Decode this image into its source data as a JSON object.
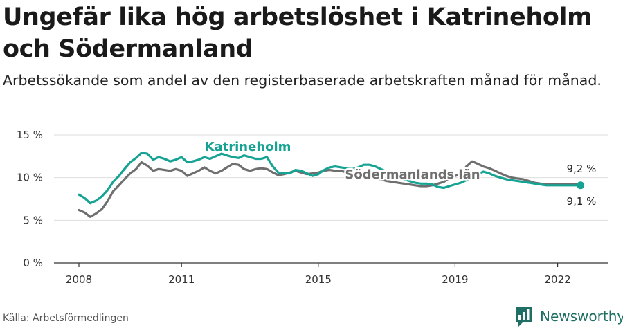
{
  "header": {
    "title": "Ungefär lika hög arbetslöshet i Katrineholm och Södermanland",
    "subtitle": "Arbetssökande som andel av den registerbaserade arbetskraften månad för månad."
  },
  "footer": {
    "source": "Källa: Arbetsförmedlingen",
    "brand": "Newsworthy"
  },
  "colors": {
    "katrineholm": "#16a394",
    "sodermanland": "#6f6f6f",
    "brand": "#1f6f64"
  },
  "chart_data": {
    "type": "line",
    "title": "Ungefär lika hög arbetslöshet i Katrineholm och Södermanland",
    "xlabel": "",
    "ylabel": "",
    "xlim": [
      2008,
      2023.5
    ],
    "ylim": [
      0,
      15
    ],
    "xticks": [
      {
        "value": 2008,
        "label": "2008"
      },
      {
        "value": 2011,
        "label": "2011"
      },
      {
        "value": 2015,
        "label": "2015"
      },
      {
        "value": 2019,
        "label": "2019"
      },
      {
        "value": 2022,
        "label": "2022"
      }
    ],
    "yticks": [
      {
        "value": 0,
        "label": "0 %"
      },
      {
        "value": 5,
        "label": "5 %"
      },
      {
        "value": 10,
        "label": "10 %"
      },
      {
        "value": 15,
        "label": "15 %"
      }
    ],
    "series": [
      {
        "name": "Södermanlands län",
        "label": "Södermanlands län",
        "end_label": "9,2 %",
        "x": [
          2008.0,
          2008.17,
          2008.33,
          2008.5,
          2008.67,
          2008.83,
          2009.0,
          2009.17,
          2009.33,
          2009.5,
          2009.67,
          2009.83,
          2010.0,
          2010.17,
          2010.33,
          2010.5,
          2010.67,
          2010.83,
          2011.0,
          2011.17,
          2011.33,
          2011.5,
          2011.67,
          2011.83,
          2012.0,
          2012.17,
          2012.33,
          2012.5,
          2012.67,
          2012.83,
          2013.0,
          2013.17,
          2013.33,
          2013.5,
          2013.67,
          2013.83,
          2014.0,
          2014.17,
          2014.33,
          2014.5,
          2014.67,
          2014.83,
          2015.0,
          2015.17,
          2015.33,
          2015.5,
          2015.67,
          2015.83,
          2016.0,
          2016.17,
          2016.33,
          2016.5,
          2016.67,
          2016.83,
          2017.0,
          2017.17,
          2017.33,
          2017.5,
          2017.67,
          2017.83,
          2018.0,
          2018.17,
          2018.33,
          2018.5,
          2018.67,
          2018.83,
          2019.0,
          2019.17,
          2019.33,
          2019.5,
          2019.67,
          2019.83,
          2020.0,
          2020.17,
          2020.33,
          2020.5,
          2020.67,
          2020.83,
          2021.0,
          2021.17,
          2021.33,
          2021.5,
          2021.67,
          2021.83,
          2022.0,
          2022.17,
          2022.33,
          2022.5,
          2022.67
        ],
        "values": [
          6.2,
          5.9,
          5.4,
          5.8,
          6.3,
          7.2,
          8.4,
          9.1,
          9.8,
          10.5,
          11.0,
          11.8,
          11.4,
          10.8,
          11.0,
          10.9,
          10.8,
          11.0,
          10.8,
          10.2,
          10.5,
          10.8,
          11.2,
          10.8,
          10.5,
          10.8,
          11.2,
          11.6,
          11.5,
          11.0,
          10.8,
          11.0,
          11.1,
          11.0,
          10.6,
          10.3,
          10.4,
          10.6,
          10.8,
          10.6,
          10.4,
          10.5,
          10.6,
          10.8,
          10.9,
          10.8,
          10.8,
          10.6,
          10.5,
          10.3,
          10.2,
          10.1,
          10.0,
          9.8,
          9.6,
          9.5,
          9.4,
          9.3,
          9.2,
          9.1,
          9.0,
          9.0,
          9.1,
          9.3,
          9.5,
          9.9,
          10.2,
          10.4,
          11.3,
          11.9,
          11.6,
          11.3,
          11.1,
          10.8,
          10.5,
          10.2,
          10.0,
          9.9,
          9.8,
          9.6,
          9.4,
          9.3,
          9.2,
          9.2,
          9.2,
          9.2,
          9.2,
          9.2,
          9.2
        ]
      },
      {
        "name": "Katrineholm",
        "label": "Katrineholm",
        "end_label": "9,1 %",
        "x": [
          2008.0,
          2008.17,
          2008.33,
          2008.5,
          2008.67,
          2008.83,
          2009.0,
          2009.17,
          2009.33,
          2009.5,
          2009.67,
          2009.83,
          2010.0,
          2010.17,
          2010.33,
          2010.5,
          2010.67,
          2010.83,
          2011.0,
          2011.17,
          2011.33,
          2011.5,
          2011.67,
          2011.83,
          2012.0,
          2012.17,
          2012.33,
          2012.5,
          2012.67,
          2012.83,
          2013.0,
          2013.17,
          2013.33,
          2013.5,
          2013.67,
          2013.83,
          2014.0,
          2014.17,
          2014.33,
          2014.5,
          2014.67,
          2014.83,
          2015.0,
          2015.17,
          2015.33,
          2015.5,
          2015.67,
          2015.83,
          2016.0,
          2016.17,
          2016.33,
          2016.5,
          2016.67,
          2016.83,
          2017.0,
          2017.17,
          2017.33,
          2017.5,
          2017.67,
          2017.83,
          2018.0,
          2018.17,
          2018.33,
          2018.5,
          2018.67,
          2018.83,
          2019.0,
          2019.17,
          2019.33,
          2019.5,
          2019.67,
          2019.83,
          2020.0,
          2020.17,
          2020.33,
          2020.5,
          2020.67,
          2020.83,
          2021.0,
          2021.17,
          2021.33,
          2021.5,
          2021.67,
          2021.83,
          2022.0,
          2022.17,
          2022.33,
          2022.5,
          2022.67
        ],
        "values": [
          8.0,
          7.6,
          7.0,
          7.3,
          7.8,
          8.5,
          9.5,
          10.2,
          11.0,
          11.8,
          12.3,
          12.9,
          12.8,
          12.1,
          12.4,
          12.2,
          11.9,
          12.1,
          12.4,
          11.8,
          11.9,
          12.1,
          12.4,
          12.2,
          12.5,
          12.8,
          12.6,
          12.4,
          12.3,
          12.6,
          12.4,
          12.2,
          12.2,
          12.4,
          11.3,
          10.6,
          10.5,
          10.5,
          10.9,
          10.8,
          10.5,
          10.2,
          10.4,
          10.9,
          11.2,
          11.3,
          11.2,
          11.1,
          11.0,
          11.2,
          11.5,
          11.5,
          11.3,
          11.0,
          10.7,
          10.5,
          10.2,
          9.8,
          9.6,
          9.4,
          9.3,
          9.3,
          9.2,
          8.9,
          8.8,
          9.0,
          9.2,
          9.4,
          9.7,
          10.0,
          10.4,
          10.7,
          10.5,
          10.2,
          10.0,
          9.8,
          9.7,
          9.6,
          9.5,
          9.4,
          9.3,
          9.2,
          9.1,
          9.1,
          9.1,
          9.1,
          9.1,
          9.1,
          9.1
        ]
      }
    ]
  }
}
